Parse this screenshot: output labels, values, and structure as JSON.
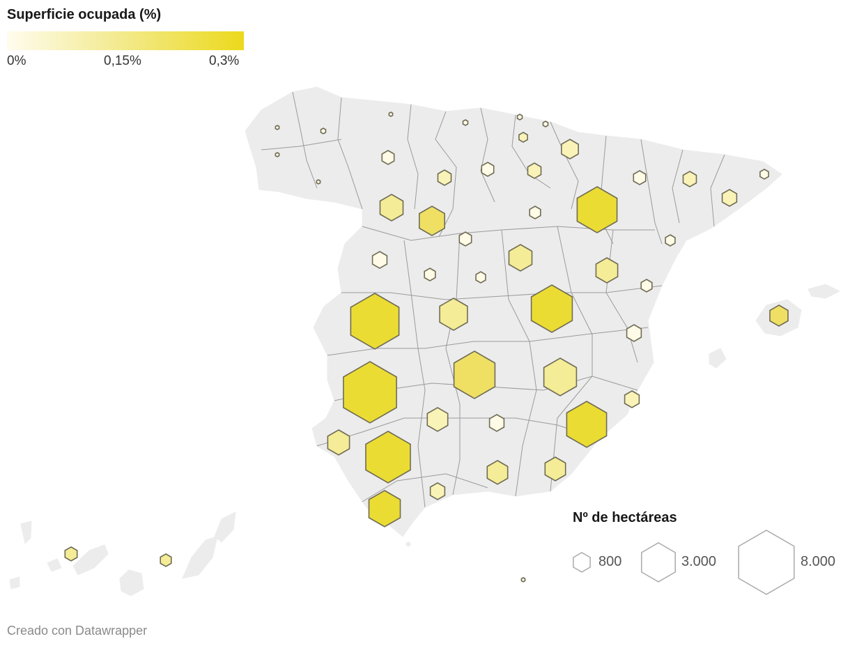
{
  "color_legend": {
    "title": "Superficie ocupada (%)",
    "ticks": [
      "0%",
      "0,15%",
      "0,3%"
    ],
    "color_low": "#fffcee",
    "color_mid": "#f3eb94",
    "color_high": "#ecd91c"
  },
  "size_legend": {
    "title": "Nº de hectáreas",
    "items": [
      {
        "label": "800",
        "value": 800
      },
      {
        "label": "3.000",
        "value": 3000
      },
      {
        "label": "8.000",
        "value": 8000
      }
    ]
  },
  "footer": "Creado con Datawrapper",
  "colors": {
    "land": "#ececec",
    "border": "#9a9a9a",
    "hex_stroke": "#6f6b55"
  }
}
